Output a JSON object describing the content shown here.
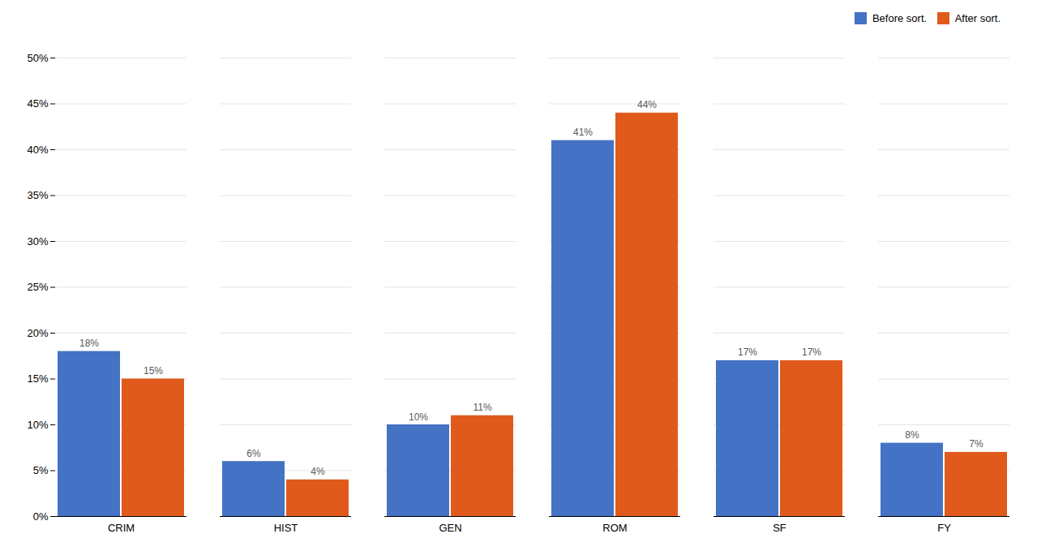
{
  "chart_data": {
    "type": "bar",
    "categories": [
      "CRIM",
      "HIST",
      "GEN",
      "ROM",
      "SF",
      "FY"
    ],
    "series": [
      {
        "name": "Before sort.",
        "color": "#4472C4",
        "values": [
          18,
          6,
          10,
          41,
          17,
          8
        ],
        "value_labels": [
          "18%",
          "6%",
          "10%",
          "41%",
          "17%",
          "8%"
        ]
      },
      {
        "name": "After sort.",
        "color": "#E05A1C",
        "values": [
          15,
          4,
          11,
          44,
          17,
          7
        ],
        "value_labels": [
          "15%",
          "4%",
          "11%",
          "44%",
          "17%",
          "7%"
        ]
      }
    ],
    "ylim": [
      0,
      50
    ],
    "yticks": [
      {
        "value": 0,
        "label": "0%"
      },
      {
        "value": 5,
        "label": "5%"
      },
      {
        "value": 10,
        "label": "10%"
      },
      {
        "value": 15,
        "label": "15%"
      },
      {
        "value": 20,
        "label": "20%"
      },
      {
        "value": 25,
        "label": "25%"
      },
      {
        "value": 30,
        "label": "30%"
      },
      {
        "value": 35,
        "label": "35%"
      },
      {
        "value": 40,
        "label": "40%"
      },
      {
        "value": 45,
        "label": "45%"
      },
      {
        "value": 50,
        "label": "50%"
      }
    ],
    "grid": true,
    "legend": "upper right",
    "data_labels": true
  }
}
